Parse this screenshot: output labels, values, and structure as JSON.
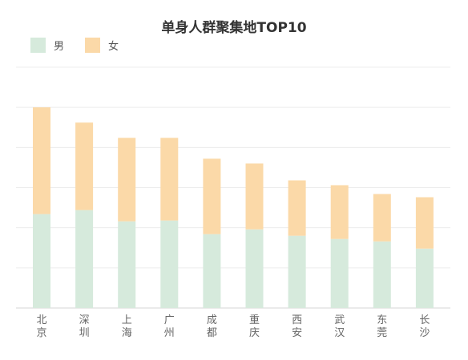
{
  "chart_data": {
    "type": "bar",
    "stacked": true,
    "title": "单身人群聚集地TOP10",
    "categories": [
      "北京",
      "深圳",
      "上海",
      "广州",
      "成都",
      "重庆",
      "西安",
      "武汉",
      "东莞",
      "长沙"
    ],
    "series": [
      {
        "name": "男",
        "color": "#d6eadc",
        "values": [
          117,
          122,
          108,
          109,
          92,
          98,
          90,
          86,
          83,
          74
        ]
      },
      {
        "name": "女",
        "color": "#fbd9a8",
        "values": [
          133,
          109,
          104,
          103,
          94,
          82,
          69,
          67,
          59,
          64
        ]
      }
    ],
    "ylim": [
      0,
      300
    ],
    "grid": true,
    "y_tick_labels_shown": false,
    "legend": "top-left"
  }
}
